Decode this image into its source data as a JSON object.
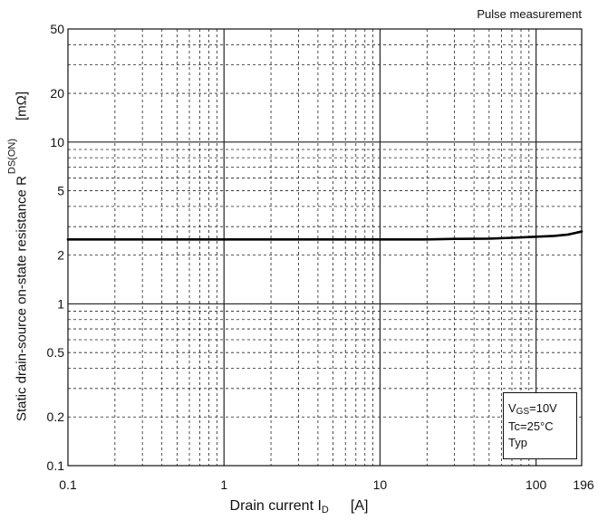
{
  "chart_data": {
    "type": "line",
    "title": "",
    "annotation_top_right": "Pulse measurement",
    "xlabel": {
      "main": "Drain current  I",
      "sub": "D",
      "unit": "[A]"
    },
    "ylabel": {
      "main": "Static drain-source on-state resistance  R",
      "sub": "DS(ON)",
      "unit": "[mΩ]"
    },
    "x_scale": "log",
    "y_scale": "log",
    "xlim": [
      0.1,
      196
    ],
    "ylim": [
      0.1,
      50
    ],
    "x_ticks": [
      {
        "value": 0.1,
        "label": "0.1"
      },
      {
        "value": 1,
        "label": "1"
      },
      {
        "value": 10,
        "label": "10"
      },
      {
        "value": 100,
        "label": "100"
      },
      {
        "value": 196,
        "label": "196"
      }
    ],
    "y_ticks": [
      {
        "value": 0.1,
        "label": "0.1"
      },
      {
        "value": 0.2,
        "label": "0.2"
      },
      {
        "value": 0.5,
        "label": "0.5"
      },
      {
        "value": 1,
        "label": "1"
      },
      {
        "value": 2,
        "label": "2"
      },
      {
        "value": 5,
        "label": "5"
      },
      {
        "value": 10,
        "label": "10"
      },
      {
        "value": 20,
        "label": "20"
      },
      {
        "value": 50,
        "label": "50"
      }
    ],
    "grid": true,
    "legend": {
      "position": "bottom-right",
      "lines": [
        {
          "main": "V",
          "sub": "GS",
          "rest": "=10V"
        },
        {
          "main": "Tc=25°C",
          "sub": "",
          "rest": ""
        },
        {
          "main": "Typ",
          "sub": "",
          "rest": ""
        }
      ]
    },
    "series": [
      {
        "x": [
          0.1,
          0.2,
          0.5,
          1,
          2,
          5,
          10,
          20,
          30,
          50,
          70,
          100,
          130,
          160,
          196
        ],
        "y": [
          2.5,
          2.5,
          2.5,
          2.5,
          2.5,
          2.5,
          2.5,
          2.5,
          2.52,
          2.53,
          2.56,
          2.6,
          2.63,
          2.68,
          2.8
        ]
      }
    ],
    "colors": {
      "line": "#000000",
      "grid": "#222222",
      "background": "#ffffff"
    }
  }
}
